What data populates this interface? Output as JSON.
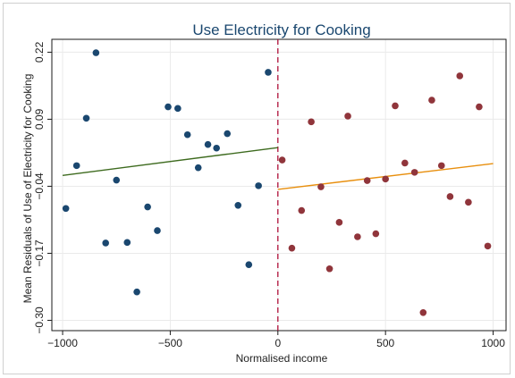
{
  "chart_data": {
    "type": "scatter",
    "title": "Use Electricity for Cooking",
    "xlabel": "Normalised income",
    "ylabel": "Mean Residuals of Use of Electricity for Cooking",
    "xlim": [
      -1050,
      1060
    ],
    "ylim": [
      -0.32,
      0.245
    ],
    "x_ticks": [
      -1000,
      -500,
      0,
      500,
      1000
    ],
    "y_ticks": [
      -0.3,
      -0.17,
      -0.04,
      0.09,
      0.22
    ],
    "x_tick_labels": [
      "−1000",
      "−500",
      "0",
      "500",
      "1000"
    ],
    "y_tick_labels": [
      "−0.30",
      "−0.17",
      "−0.04",
      "0.09",
      "0.22"
    ],
    "grid": true,
    "cutoff": 0,
    "series": [
      {
        "color": "#1a476f",
        "points": [
          [
            -985,
            -0.083
          ],
          [
            -935,
            0.0
          ],
          [
            -890,
            0.092
          ],
          [
            -845,
            0.219
          ],
          [
            -800,
            -0.15
          ],
          [
            -750,
            -0.028
          ],
          [
            -700,
            -0.149
          ],
          [
            -655,
            -0.245
          ],
          [
            -605,
            -0.08
          ],
          [
            -560,
            -0.126
          ],
          [
            -510,
            0.114
          ],
          [
            -465,
            0.111
          ],
          [
            -420,
            0.06
          ],
          [
            -370,
            -0.004
          ],
          [
            -325,
            0.041
          ],
          [
            -285,
            0.034
          ],
          [
            -235,
            0.062
          ],
          [
            -185,
            -0.077
          ],
          [
            -135,
            -0.192
          ],
          [
            -90,
            -0.039
          ],
          [
            -45,
            0.181
          ]
        ],
        "fit": {
          "x": [
            -1000,
            0
          ],
          "y": [
            -0.019,
            0.035
          ],
          "color": "#3e6b1f"
        }
      },
      {
        "color": "#90353b",
        "points": [
          [
            20,
            0.011
          ],
          [
            65,
            -0.16
          ],
          [
            110,
            -0.087
          ],
          [
            155,
            0.085
          ],
          [
            200,
            -0.041
          ],
          [
            240,
            -0.2
          ],
          [
            285,
            -0.11
          ],
          [
            325,
            0.096
          ],
          [
            370,
            -0.138
          ],
          [
            415,
            -0.029
          ],
          [
            455,
            -0.132
          ],
          [
            500,
            -0.026
          ],
          [
            545,
            0.116
          ],
          [
            590,
            0.005
          ],
          [
            635,
            -0.013
          ],
          [
            675,
            -0.285
          ],
          [
            715,
            0.127
          ],
          [
            760,
            0.0
          ],
          [
            800,
            -0.06
          ],
          [
            845,
            0.174
          ],
          [
            885,
            -0.071
          ],
          [
            935,
            0.114
          ],
          [
            975,
            -0.156
          ]
        ],
        "fit": {
          "x": [
            0,
            1000
          ],
          "y": [
            -0.046,
            0.004
          ],
          "color": "#e88f0e"
        }
      }
    ]
  }
}
